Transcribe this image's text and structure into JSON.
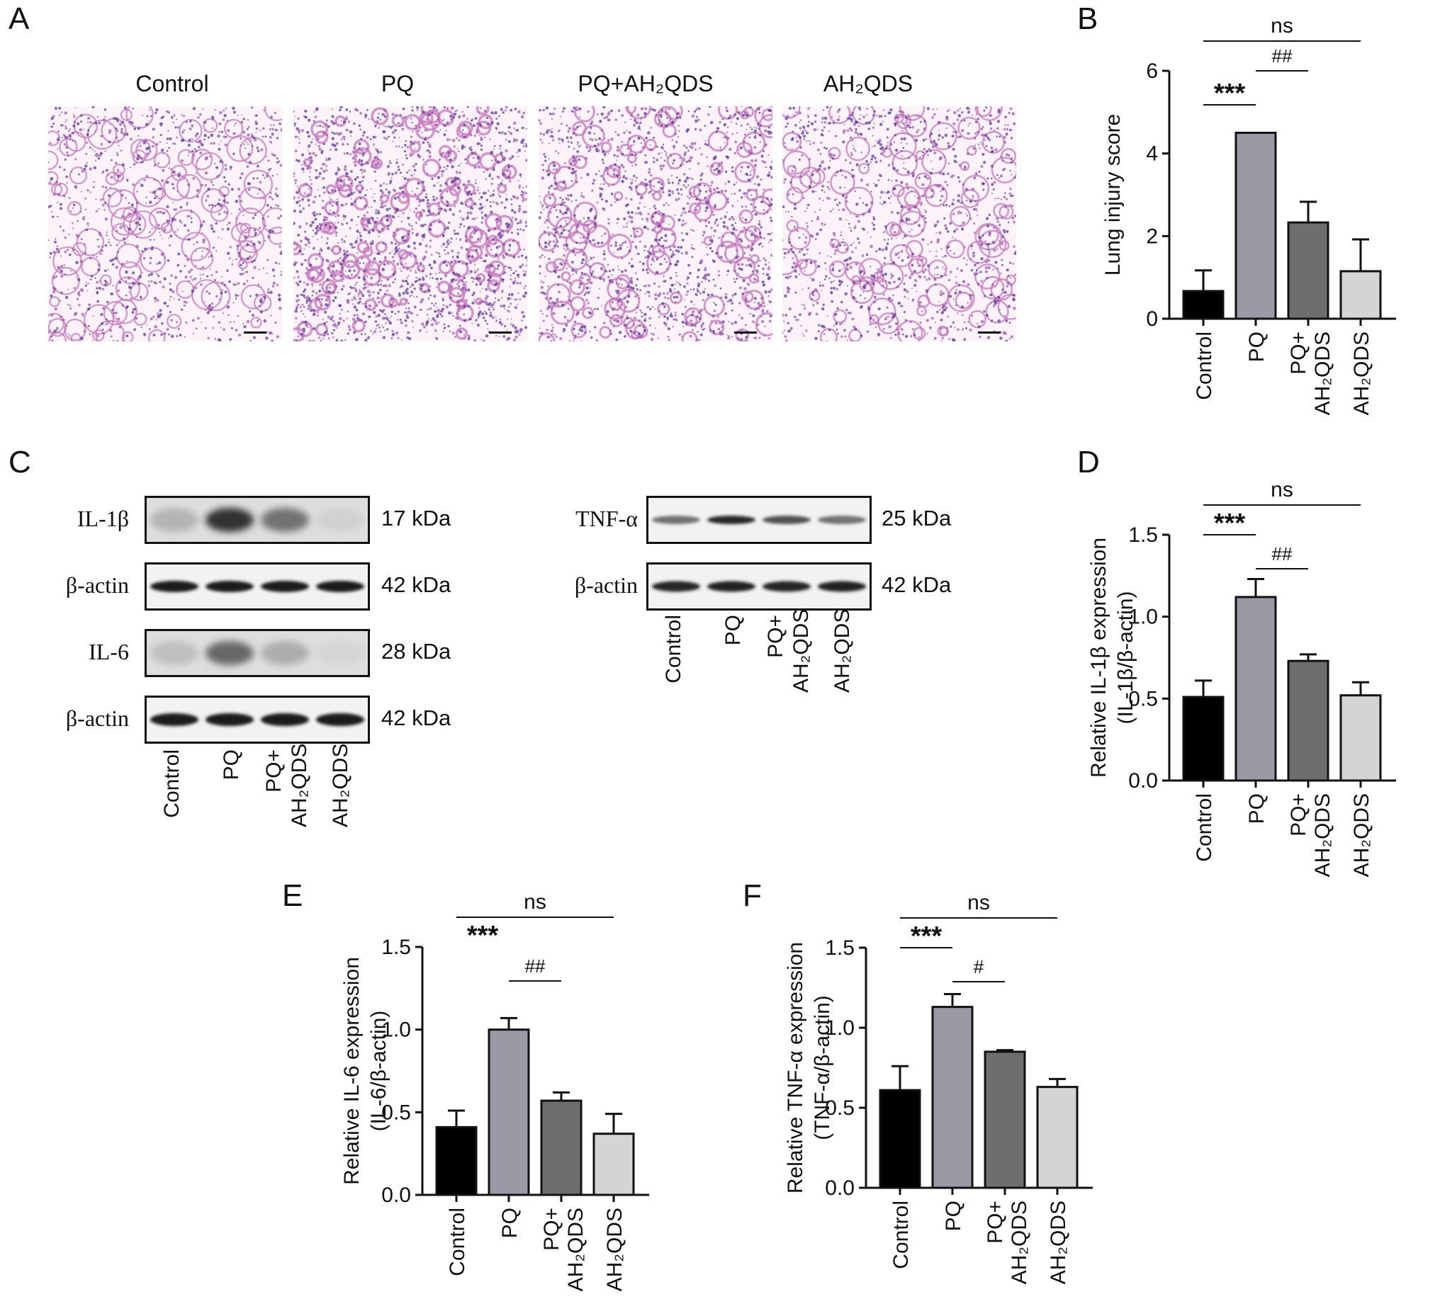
{
  "panel_letters": [
    "A",
    "B",
    "C",
    "D",
    "E",
    "F"
  ],
  "groups": [
    "Control",
    "PQ",
    "PQ+AH₂QDS",
    "AH₂QDS"
  ],
  "group_axis_labels": [
    {
      "line1": "Control",
      "line2": ""
    },
    {
      "line1": "PQ",
      "line2": ""
    },
    {
      "line1": "PQ+",
      "line2": "AH₂QDS"
    },
    {
      "line1": "AH₂QDS",
      "line2": ""
    }
  ],
  "panelA": {
    "labels": [
      "Control",
      "PQ",
      "PQ+AH₂QDS",
      "AH₂QDS"
    ]
  },
  "panelC": {
    "left_rows": [
      {
        "label": "IL-1β",
        "kda": "17 kDa"
      },
      {
        "label": "β-actin",
        "kda": "42 kDa"
      },
      {
        "label": "IL-6",
        "kda": "28 kDa"
      },
      {
        "label": "β-actin",
        "kda": "42 kDa"
      }
    ],
    "right_rows": [
      {
        "label": "TNF-α",
        "kda": "25 kDa"
      },
      {
        "label": "β-actin",
        "kda": "42 kDa"
      }
    ],
    "lane_labels": [
      "Control",
      "PQ",
      "PQ+",
      "AH₂QDS",
      "AH₂QDS"
    ]
  },
  "colors": {
    "Control": "#000000",
    "PQ": "#9a9aa6",
    "PQ+AH2QDS": "#6e6e6e",
    "AH2QDS": "#d4d4d4",
    "he_background": "#fbf3f8",
    "he_stain": "#c678bc"
  },
  "chart_data": [
    {
      "panel": "B",
      "type": "bar",
      "categories": [
        "Control",
        "PQ",
        "PQ+AH₂QDS",
        "AH₂QDS"
      ],
      "values": [
        0.67,
        4.5,
        2.33,
        1.15
      ],
      "errors": [
        0.5,
        0.0,
        0.5,
        0.77
      ],
      "ylabel": "Lung injury score",
      "ylabel2": "",
      "ylim": [
        0,
        6
      ],
      "yticks": [
        "0",
        "2",
        "4",
        "6"
      ],
      "ytick_values": [
        0,
        2,
        4,
        6
      ],
      "annotations": [
        {
          "text": "ns",
          "from": 0,
          "to": 3,
          "level": 3
        },
        {
          "text": "##",
          "from": 1,
          "to": 2,
          "level": 2
        },
        {
          "text": "***",
          "from": 0,
          "to": 1,
          "level": 1
        }
      ]
    },
    {
      "panel": "D",
      "type": "bar",
      "categories": [
        "Control",
        "PQ",
        "PQ+AH₂QDS",
        "AH₂QDS"
      ],
      "values": [
        0.51,
        1.12,
        0.73,
        0.52
      ],
      "errors": [
        0.1,
        0.11,
        0.04,
        0.08
      ],
      "ylabel": "Relative IL-1β expression",
      "ylabel2": "(IL-1β/β-actin)",
      "ylim": [
        0,
        1.5
      ],
      "yticks": [
        "0.0",
        "0.5",
        "1.0",
        "1.5"
      ],
      "ytick_values": [
        0,
        0.5,
        1.0,
        1.5
      ],
      "annotations": [
        {
          "text": "ns",
          "from": 0,
          "to": 3,
          "level": 3
        },
        {
          "text": "***",
          "from": 0,
          "to": 1,
          "level": 2
        },
        {
          "text": "##",
          "from": 1,
          "to": 2,
          "level": 1
        }
      ]
    },
    {
      "panel": "E",
      "type": "bar",
      "categories": [
        "Control",
        "PQ",
        "PQ+AH₂QDS",
        "AH₂QDS"
      ],
      "values": [
        0.41,
        1.0,
        0.57,
        0.37
      ],
      "errors": [
        0.1,
        0.07,
        0.05,
        0.12
      ],
      "ylabel": "Relative IL-6 expression",
      "ylabel2": "(IL-6/β-actin)",
      "ylim": [
        0,
        1.5
      ],
      "yticks": [
        "0.0",
        "0.5",
        "1.0",
        "1.5"
      ],
      "ytick_values": [
        0,
        0.5,
        1.0,
        1.5
      ],
      "annotations": [
        {
          "text": "ns",
          "from": 0,
          "to": 3,
          "level": 3
        },
        {
          "text": "***",
          "from": 0,
          "to": 1,
          "level": 2,
          "no_line": true
        },
        {
          "text": "##",
          "from": 1,
          "to": 2,
          "level": 1
        }
      ]
    },
    {
      "panel": "F",
      "type": "bar",
      "categories": [
        "Control",
        "PQ",
        "PQ+AH₂QDS",
        "AH₂QDS"
      ],
      "values": [
        0.61,
        1.13,
        0.85,
        0.63
      ],
      "errors": [
        0.15,
        0.08,
        0.01,
        0.05
      ],
      "ylabel": "Relative TNF-α expression",
      "ylabel2": "(TNF-α/β-actin)",
      "ylim": [
        0,
        1.5
      ],
      "yticks": [
        "0.0",
        "0.5",
        "1.0",
        "1.5"
      ],
      "ytick_values": [
        0,
        0.5,
        1.0,
        1.5
      ],
      "annotations": [
        {
          "text": "ns",
          "from": 0,
          "to": 3,
          "level": 3
        },
        {
          "text": "***",
          "from": 0,
          "to": 1,
          "level": 2
        },
        {
          "text": "#",
          "from": 1,
          "to": 2,
          "level": 1
        }
      ]
    }
  ]
}
